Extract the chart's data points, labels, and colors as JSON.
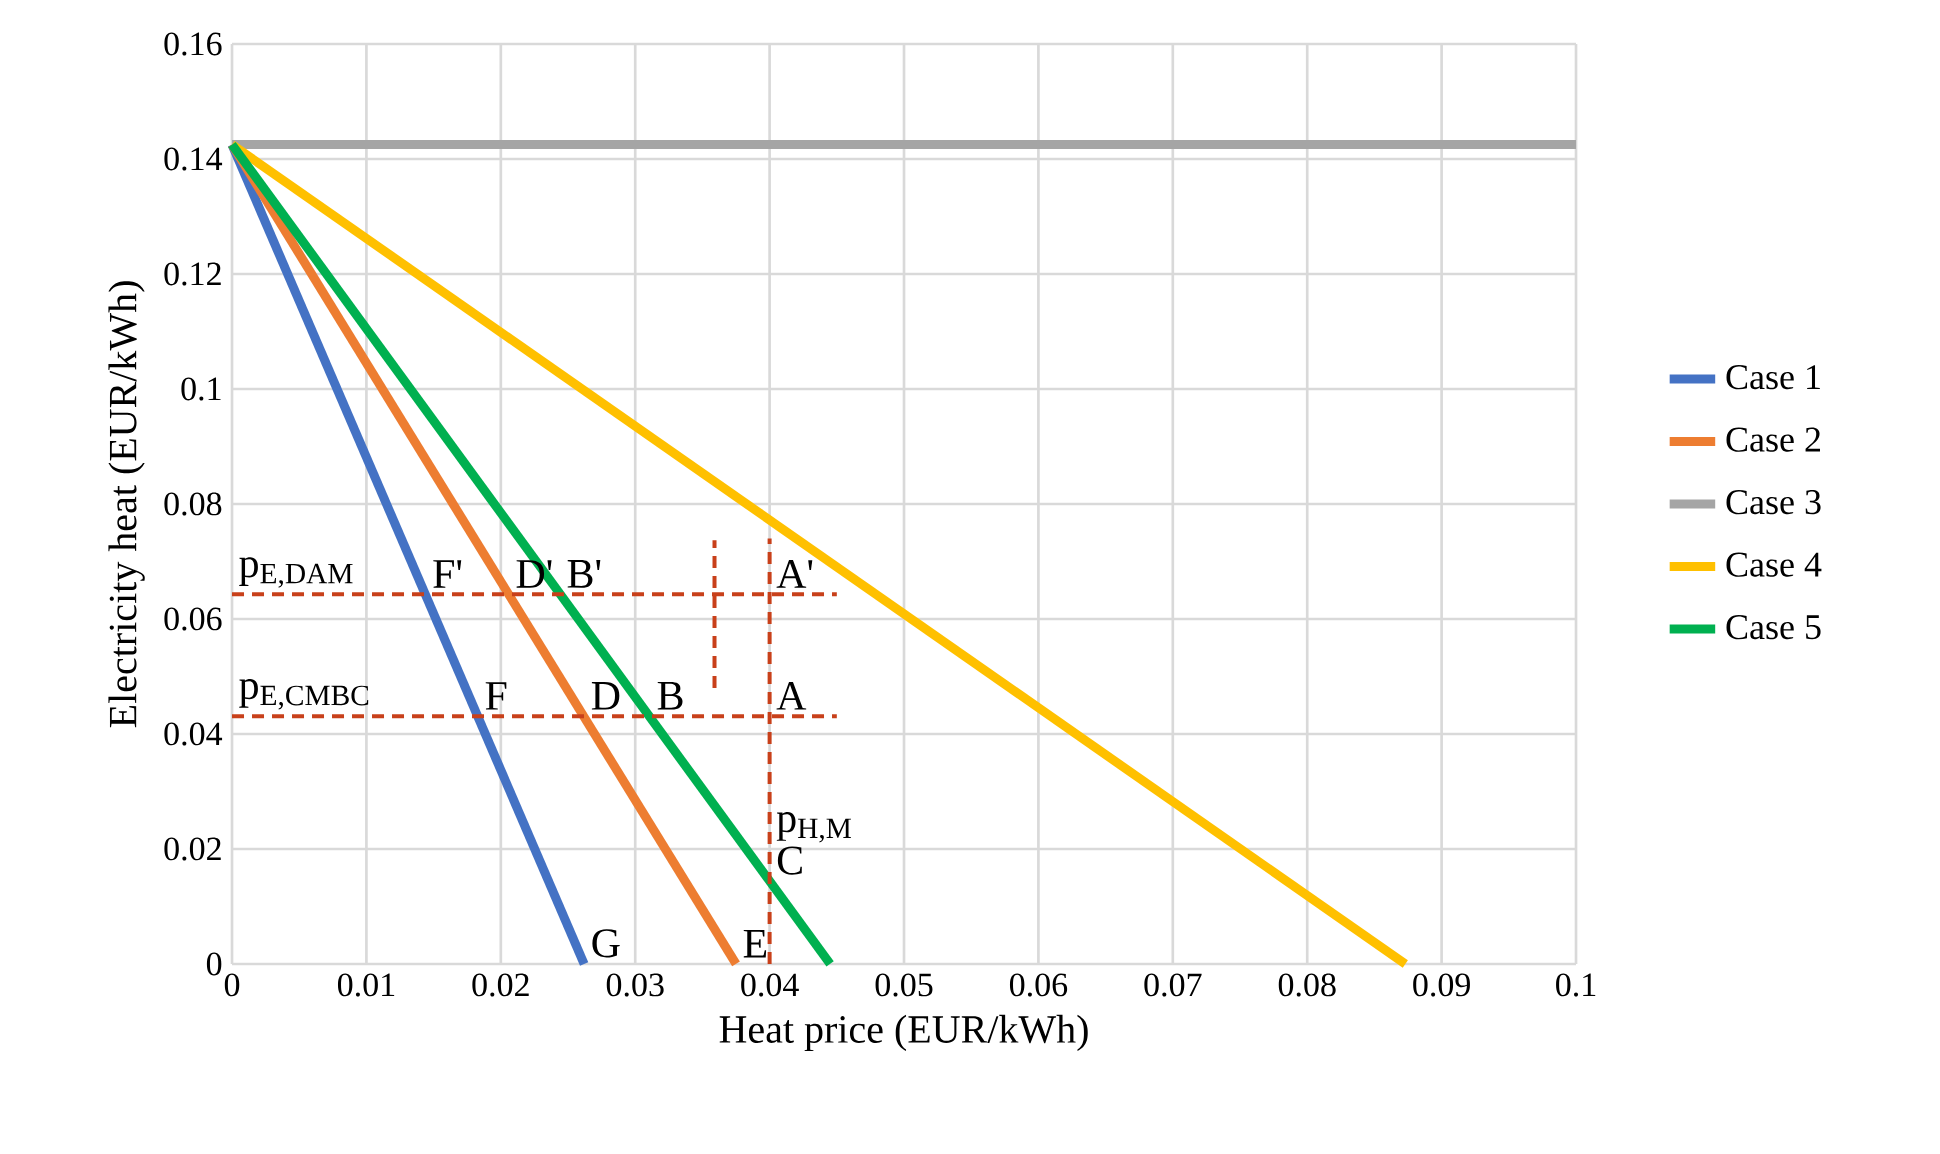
{
  "chart_data": {
    "type": "line",
    "xlabel": "Heat price (EUR/kWh)",
    "ylabel": "Electricity heat (EUR/kWh)",
    "xlim": [
      0,
      0.1
    ],
    "ylim": [
      0,
      0.16
    ],
    "xticks": [
      0,
      0.01,
      0.02,
      0.03,
      0.04,
      0.05,
      0.06,
      0.07,
      0.08,
      0.09,
      0.1
    ],
    "yticks": [
      0,
      0.02,
      0.04,
      0.06,
      0.08,
      0.1,
      0.12,
      0.14,
      0.16
    ],
    "grid": true,
    "legend": "right",
    "line_style": "solid",
    "marker": "none",
    "series": [
      {
        "name": "Case 1",
        "color": "#4472c4",
        "x": [
          0,
          0.0262
        ],
        "values": [
          0.1425,
          0
        ]
      },
      {
        "name": "Case 2",
        "color": "#ed7d31",
        "x": [
          0,
          0.0375
        ],
        "values": [
          0.1425,
          0
        ]
      },
      {
        "name": "Case 3",
        "color": "#a5a5a5",
        "x": [
          0,
          0.1
        ],
        "values": [
          0.1425,
          0.1425
        ]
      },
      {
        "name": "Case 4",
        "color": "#ffc000",
        "x": [
          0,
          0.0873
        ],
        "values": [
          0.1425,
          0
        ]
      },
      {
        "name": "Case 5",
        "color": "#00b050",
        "x": [
          0,
          0.0445
        ],
        "values": [
          0.1425,
          0
        ]
      },
      {
        "color": "#c8401a",
        "line_style": "dashed",
        "x": [
          0,
          0.045
        ],
        "values": [
          0.0643,
          0.0643
        ]
      },
      {
        "color": "#c8401a",
        "line_style": "dashed",
        "x": [
          0,
          0.045
        ],
        "values": [
          0.0431,
          0.0431
        ]
      },
      {
        "color": "#c8401a",
        "line_style": "dashed",
        "x": [
          0.04,
          0.04
        ],
        "values": [
          0,
          0.074
        ]
      },
      {
        "color": "#c8401a",
        "line_style": "dashed",
        "x": [
          0.0359,
          0.0359
        ],
        "values": [
          0.048,
          0.0737
        ]
      }
    ],
    "annotations": [
      {
        "text": "p$_{E,DAM}$",
        "x": 0,
        "y": 0.0643
      },
      {
        "text": "p$_{E,CMBC}$",
        "x": 0,
        "y": 0.0431
      },
      {
        "text": "F'",
        "x": 0.0144,
        "y": 0.0643
      },
      {
        "text": "D'",
        "x": 0.0206,
        "y": 0.0643
      },
      {
        "text": "B'",
        "x": 0.0244,
        "y": 0.0643
      },
      {
        "text": "A'",
        "x": 0.04,
        "y": 0.0643
      },
      {
        "text": "F",
        "x": 0.0183,
        "y": 0.0431
      },
      {
        "text": "D",
        "x": 0.0262,
        "y": 0.0431
      },
      {
        "text": "B",
        "x": 0.0311,
        "y": 0.0431
      },
      {
        "text": "A",
        "x": 0.04,
        "y": 0.0431
      },
      {
        "text": "p$_{H,M}$",
        "x": 0.04,
        "y": 0.02
      },
      {
        "text": "C",
        "x": 0.04,
        "y": 0.0144
      },
      {
        "text": "E",
        "x": 0.0375,
        "y": 0
      },
      {
        "text": "G",
        "x": 0.0262,
        "y": 0
      }
    ]
  }
}
